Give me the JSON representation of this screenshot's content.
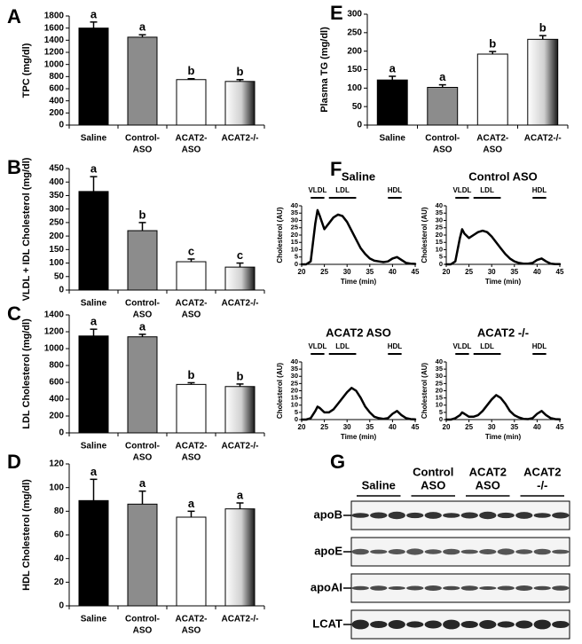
{
  "chart_data": [
    {
      "type": "bar",
      "panel_label": "A",
      "ylabel": "TPC (mg/dl)",
      "categories": [
        [
          "Saline"
        ],
        [
          "Control-",
          "ASO"
        ],
        [
          "ACAT2-",
          "ASO"
        ],
        [
          "ACAT2-/-"
        ]
      ],
      "values": [
        1600,
        1450,
        750,
        720
      ],
      "errors": [
        100,
        40,
        15,
        30
      ],
      "annotations": [
        "a",
        "a",
        "b",
        "b"
      ],
      "colors": [
        "#000000",
        "#8c8c8c",
        "#ffffff",
        "#1a1a1a"
      ],
      "gradient": [
        false,
        false,
        false,
        true
      ],
      "ylim": [
        0,
        1800
      ],
      "yticks": [
        0,
        200,
        400,
        600,
        800,
        1000,
        1200,
        1400,
        1600,
        1800
      ]
    },
    {
      "type": "bar",
      "panel_label": "B",
      "ylabel": "VLDL + IDL Cholesterol (mg/dl)",
      "categories": [
        [
          "Saline"
        ],
        [
          "Control-",
          "ASO"
        ],
        [
          "ACAT2-",
          "ASO"
        ],
        [
          "ACAT2-/-"
        ]
      ],
      "values": [
        365,
        220,
        105,
        85
      ],
      "errors": [
        55,
        30,
        10,
        15
      ],
      "annotations": [
        "a",
        "b",
        "c",
        "c"
      ],
      "colors": [
        "#000000",
        "#8c8c8c",
        "#ffffff",
        "#1a1a1a"
      ],
      "gradient": [
        false,
        false,
        false,
        true
      ],
      "ylim": [
        0,
        450
      ],
      "yticks": [
        0,
        50,
        100,
        150,
        200,
        250,
        300,
        350,
        400,
        450
      ]
    },
    {
      "type": "bar",
      "panel_label": "C",
      "ylabel": "LDL Cholesterol (mg/dl)",
      "categories": [
        [
          "Saline"
        ],
        [
          "Control-",
          "ASO"
        ],
        [
          "ACAT2-",
          "ASO"
        ],
        [
          "ACAT2-/-"
        ]
      ],
      "values": [
        1150,
        1140,
        575,
        550
      ],
      "errors": [
        80,
        30,
        20,
        30
      ],
      "annotations": [
        "a",
        "a",
        "b",
        "b"
      ],
      "colors": [
        "#000000",
        "#8c8c8c",
        "#ffffff",
        "#1a1a1a"
      ],
      "gradient": [
        false,
        false,
        false,
        true
      ],
      "ylim": [
        0,
        1400
      ],
      "yticks": [
        0,
        200,
        400,
        600,
        800,
        1000,
        1200,
        1400
      ]
    },
    {
      "type": "bar",
      "panel_label": "D",
      "ylabel": "HDL Cholesterol (mg/dl)",
      "categories": [
        [
          "Saline"
        ],
        [
          "Control-",
          "ASO"
        ],
        [
          "ACAT2-",
          "ASO"
        ],
        [
          "ACAT2-/-"
        ]
      ],
      "values": [
        89,
        86,
        75,
        82
      ],
      "errors": [
        18,
        11,
        5,
        5
      ],
      "annotations": [
        "a",
        "a",
        "a",
        "a"
      ],
      "colors": [
        "#000000",
        "#8c8c8c",
        "#ffffff",
        "#1a1a1a"
      ],
      "gradient": [
        false,
        false,
        false,
        true
      ],
      "ylim": [
        0,
        120
      ],
      "yticks": [
        0,
        20,
        40,
        60,
        80,
        100,
        120
      ]
    },
    {
      "type": "bar",
      "panel_label": "E",
      "ylabel": "Plasma TG (mg/dl)",
      "categories": [
        [
          "Saline"
        ],
        [
          "Control-",
          "ASO"
        ],
        [
          "ACAT2-",
          "ASO"
        ],
        [
          "ACAT2-/-"
        ]
      ],
      "values": [
        122,
        102,
        192,
        232
      ],
      "errors": [
        10,
        7,
        7,
        10
      ],
      "annotations": [
        "a",
        "a",
        "b",
        "b"
      ],
      "colors": [
        "#000000",
        "#8c8c8c",
        "#ffffff",
        "#1a1a1a"
      ],
      "gradient": [
        false,
        false,
        false,
        true
      ],
      "ylim": [
        0,
        300
      ],
      "yticks": [
        0,
        50,
        100,
        150,
        200,
        250,
        300
      ]
    },
    {
      "type": "line",
      "panel_label": "F",
      "title": "Saline",
      "ylabel": "Cholesterol (AU)",
      "xlabel": "Time (min)",
      "x": [
        20,
        21,
        22,
        23,
        23.5,
        24,
        25,
        26,
        27,
        28,
        29,
        30,
        31,
        32,
        33,
        34,
        35,
        36,
        37,
        38,
        39,
        40,
        41,
        42,
        43,
        44,
        45
      ],
      "values": [
        0,
        0,
        2,
        28,
        37,
        33,
        24,
        28,
        32,
        34,
        33,
        29,
        23,
        17,
        11,
        7,
        4,
        2.5,
        2,
        1.5,
        2,
        4,
        5,
        3,
        1,
        0.5,
        0.3
      ],
      "color": "#000000",
      "regions": [
        {
          "label": "VLDL",
          "range": [
            22,
            25
          ]
        },
        {
          "label": "LDL",
          "range": [
            26,
            32
          ]
        },
        {
          "label": "HDL",
          "range": [
            39,
            42
          ]
        }
      ],
      "xlim": [
        20,
        45
      ],
      "xticks": [
        20,
        25,
        30,
        35,
        40,
        45
      ],
      "ylim": [
        0,
        40
      ],
      "yticks": [
        0,
        5,
        10,
        15,
        20,
        25,
        30,
        35,
        40
      ]
    },
    {
      "type": "line",
      "title": "Control ASO",
      "ylabel": "Cholesterol (AU)",
      "xlabel": "Time (min)",
      "x": [
        20,
        21,
        22,
        23,
        23.5,
        24,
        25,
        26,
        27,
        28,
        29,
        30,
        31,
        32,
        33,
        34,
        35,
        36,
        37,
        38,
        39,
        40,
        41,
        42,
        43,
        44,
        45
      ],
      "values": [
        0,
        0,
        2,
        18,
        24,
        21,
        18,
        20,
        22,
        23,
        22,
        19,
        15,
        11,
        7,
        4,
        2,
        1,
        0.5,
        0.5,
        1,
        3,
        4,
        2,
        0.5,
        0.2,
        0.1
      ],
      "color": "#000000",
      "regions": [
        {
          "label": "VLDL",
          "range": [
            22,
            25
          ]
        },
        {
          "label": "LDL",
          "range": [
            26,
            32
          ]
        },
        {
          "label": "HDL",
          "range": [
            39,
            42
          ]
        }
      ],
      "xlim": [
        20,
        45
      ],
      "xticks": [
        20,
        25,
        30,
        35,
        40,
        45
      ],
      "ylim": [
        0,
        40
      ],
      "yticks": [
        0,
        5,
        10,
        15,
        20,
        25,
        30,
        35,
        40
      ]
    },
    {
      "type": "line",
      "title": "ACAT2 ASO",
      "ylabel": "Cholesterol (AU)",
      "xlabel": "Time (min)",
      "x": [
        20,
        21,
        22,
        23,
        23.5,
        24,
        25,
        26,
        27,
        28,
        29,
        30,
        31,
        32,
        33,
        34,
        35,
        36,
        37,
        38,
        39,
        40,
        41,
        42,
        43,
        44,
        45
      ],
      "values": [
        0,
        0,
        1,
        6,
        9,
        8,
        5,
        5,
        7,
        11,
        15,
        19,
        22,
        20,
        15,
        9,
        5,
        2,
        1,
        0.5,
        1,
        4,
        6,
        3,
        1,
        0.3,
        0.1
      ],
      "color": "#000000",
      "regions": [
        {
          "label": "VLDL",
          "range": [
            22,
            25
          ]
        },
        {
          "label": "LDL",
          "range": [
            26,
            32
          ]
        },
        {
          "label": "HDL",
          "range": [
            39,
            42
          ]
        }
      ],
      "xlim": [
        20,
        45
      ],
      "xticks": [
        20,
        25,
        30,
        35,
        40,
        45
      ],
      "ylim": [
        0,
        40
      ],
      "yticks": [
        0,
        5,
        10,
        15,
        20,
        25,
        30,
        35,
        40
      ]
    },
    {
      "type": "line",
      "title": "ACAT2 -/-",
      "ylabel": "Cholesterol (AU)",
      "xlabel": "Time (min)",
      "x": [
        20,
        21,
        22,
        23,
        23.5,
        24,
        25,
        26,
        27,
        28,
        29,
        30,
        31,
        32,
        33,
        34,
        35,
        36,
        37,
        38,
        39,
        40,
        41,
        42,
        43,
        44,
        45
      ],
      "values": [
        0,
        0,
        1,
        3,
        5,
        4,
        2,
        2,
        3,
        6,
        10,
        14,
        17,
        15,
        11,
        6,
        3,
        1.5,
        0.5,
        0.3,
        1,
        4,
        6,
        3,
        1,
        0.3,
        0.1
      ],
      "color": "#000000",
      "regions": [
        {
          "label": "VLDL",
          "range": [
            22,
            25
          ]
        },
        {
          "label": "LDL",
          "range": [
            26,
            32
          ]
        },
        {
          "label": "HDL",
          "range": [
            39,
            42
          ]
        }
      ],
      "xlim": [
        20,
        45
      ],
      "xticks": [
        20,
        25,
        30,
        35,
        40,
        45
      ],
      "ylim": [
        0,
        40
      ],
      "yticks": [
        0,
        5,
        10,
        15,
        20,
        25,
        30,
        35,
        40
      ]
    }
  ],
  "blot": {
    "panel_label": "G",
    "groups": [
      [
        "Saline"
      ],
      [
        "Control",
        "ASO"
      ],
      [
        "ACAT2",
        "ASO"
      ],
      [
        "ACAT2",
        "-/-"
      ]
    ],
    "rows": [
      "apoB",
      "apoE",
      "apoAI",
      "LCAT"
    ]
  }
}
